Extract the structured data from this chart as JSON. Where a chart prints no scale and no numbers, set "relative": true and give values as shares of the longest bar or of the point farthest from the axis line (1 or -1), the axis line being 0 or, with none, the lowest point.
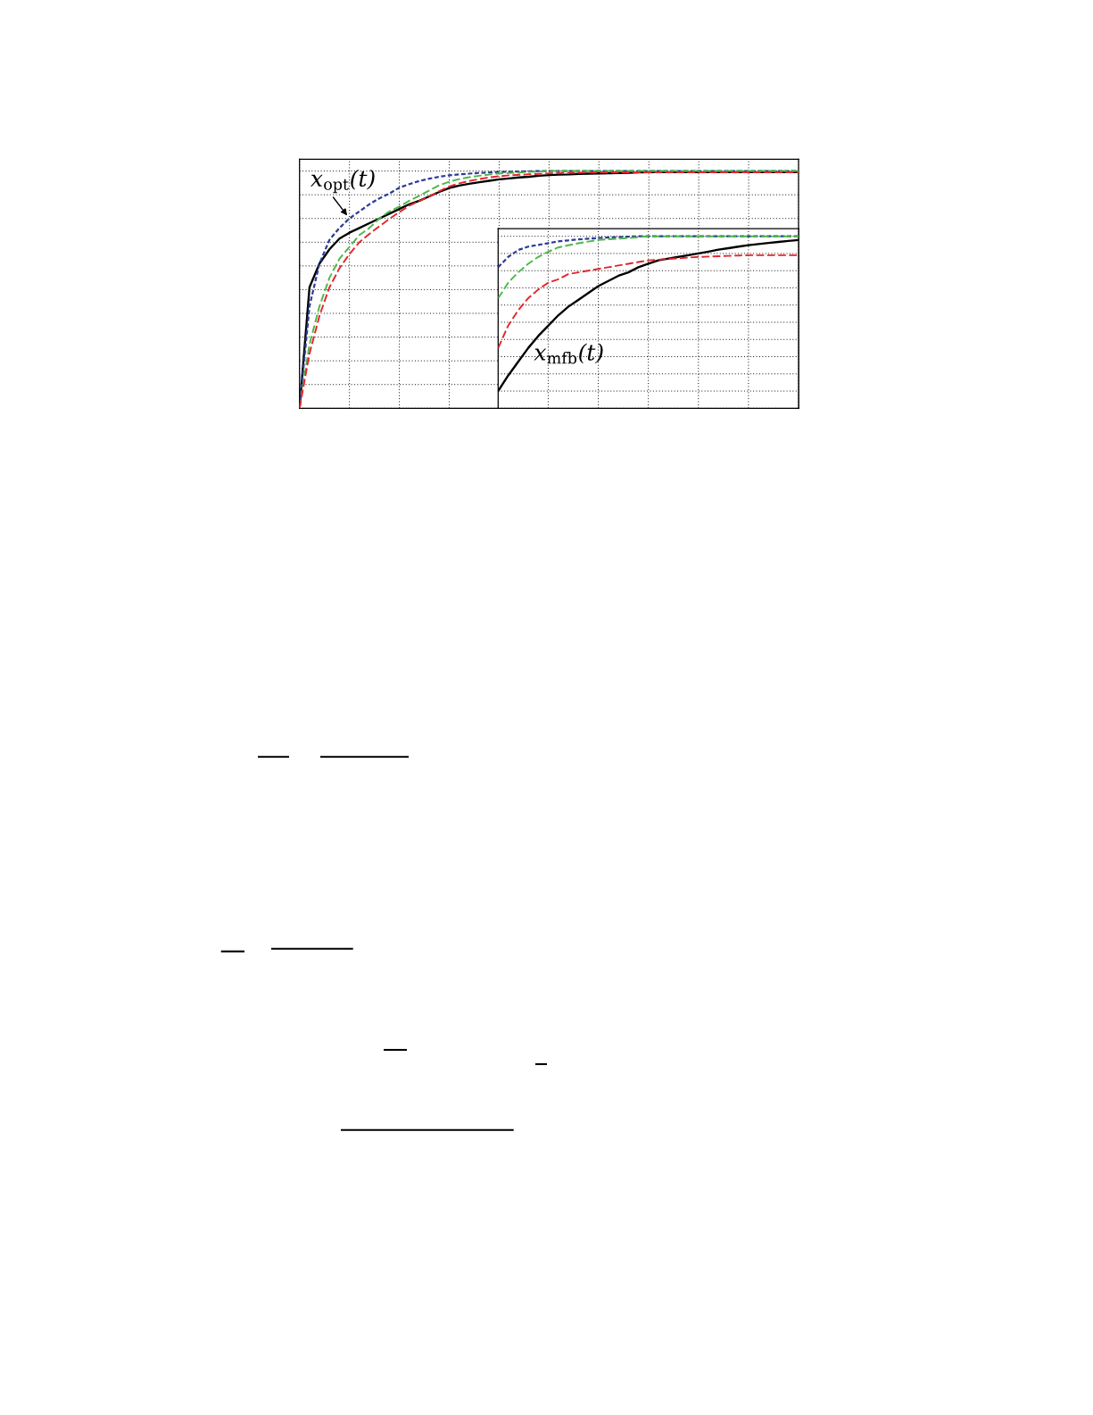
{
  "chart_data": [
    {
      "type": "line",
      "relative": true,
      "grid": true,
      "categories": [
        null,
        null,
        null,
        null,
        null,
        null,
        null,
        null,
        null,
        null,
        null,
        null,
        null,
        null,
        null,
        null,
        null,
        null,
        null,
        null,
        null,
        null,
        null,
        null,
        null,
        null,
        null,
        null,
        null,
        null,
        null,
        null,
        null,
        null,
        null,
        null,
        null,
        null,
        null,
        null,
        null,
        null,
        null,
        null,
        null,
        null,
        null,
        null,
        null,
        null,
        null
      ],
      "series": [
        {
          "color": "#000000",
          "line_style": "solid",
          "values": [
            0,
            0.51,
            0.61,
            0.67,
            0.715,
            0.74,
            0.76,
            0.78,
            0.8,
            0.82,
            0.84,
            0.86,
            0.875,
            0.893,
            0.912,
            0.928,
            0.939,
            0.946,
            0.953,
            0.959,
            0.965,
            0.969,
            0.973,
            0.976,
            0.98,
            0.983,
            0.985,
            0.986,
            0.988,
            0.989,
            0.99,
            0.991,
            0.992,
            0.993,
            0.994,
            0.995,
            0.995,
            0.995,
            0.995,
            0.995,
            0.995,
            0.995,
            0.995,
            0.995,
            0.995,
            0.995,
            0.995,
            0.995,
            0.995,
            0.995,
            0.995
          ]
        },
        {
          "name": "x$_{opt}$(t)",
          "color": "#2e3b96",
          "line_style": "dotted",
          "values": [
            0,
            0.43,
            0.61,
            0.71,
            0.76,
            0.8,
            0.83,
            0.86,
            0.885,
            0.905,
            0.93,
            0.945,
            0.958,
            0.968,
            0.976,
            0.982,
            0.986,
            0.989,
            0.992,
            0.994,
            0.996,
            0.997,
            0.998,
            0.999,
            1,
            1,
            1,
            1,
            1,
            1,
            1,
            1,
            1,
            1,
            1,
            1,
            1,
            1,
            1,
            1,
            1,
            1,
            1,
            1,
            1,
            1,
            1,
            1,
            1,
            1,
            1
          ]
        },
        {
          "color": "#4db848",
          "line_style": "dashed",
          "values": [
            0,
            0.27,
            0.43,
            0.55,
            0.63,
            0.68,
            0.73,
            0.76,
            0.8,
            0.83,
            0.85,
            0.875,
            0.895,
            0.918,
            0.94,
            0.955,
            0.966,
            0.974,
            0.98,
            0.985,
            0.99,
            0.992,
            0.994,
            0.996,
            0.998,
            1,
            1,
            1,
            1,
            1,
            1,
            1,
            1,
            1,
            1,
            1,
            1,
            1,
            1,
            1,
            1,
            1,
            1,
            1,
            1,
            1,
            1,
            1,
            1,
            1,
            1
          ]
        },
        {
          "color": "#e3262b",
          "line_style": "dashed",
          "values": [
            0,
            0.23,
            0.39,
            0.51,
            0.59,
            0.65,
            0.7,
            0.735,
            0.767,
            0.798,
            0.827,
            0.854,
            0.874,
            0.893,
            0.915,
            0.935,
            0.948,
            0.958,
            0.966,
            0.973,
            0.978,
            0.982,
            0.984,
            0.986,
            0.988,
            0.99,
            0.991,
            0.992,
            0.993,
            0.994,
            0.995,
            0.995,
            0.995,
            0.995,
            0.995,
            0.995,
            0.995,
            0.995,
            0.995,
            0.995,
            0.995,
            0.995,
            0.995,
            0.995,
            0.995,
            0.995,
            0.995,
            0.995,
            0.995,
            0.995,
            0.995
          ]
        }
      ]
    },
    {
      "type": "line",
      "relative": true,
      "grid": true,
      "categories": [
        null,
        null,
        null,
        null,
        null,
        null,
        null,
        null,
        null,
        null,
        null,
        null,
        null,
        null,
        null,
        null,
        null,
        null,
        null,
        null,
        null,
        null,
        null,
        null,
        null,
        null,
        null,
        null,
        null,
        null,
        null
      ],
      "series": [
        {
          "name": "x$_{mfb}$(t)",
          "color": "#000000",
          "line_style": "solid",
          "values": [
            0.1,
            0.19,
            0.27,
            0.35,
            0.42,
            0.48,
            0.54,
            0.59,
            0.63,
            0.67,
            0.71,
            0.74,
            0.77,
            0.79,
            0.82,
            0.84,
            0.86,
            0.87,
            0.88,
            0.89,
            0.9,
            0.911,
            0.922,
            0.931,
            0.94,
            0.948,
            0.955,
            0.961,
            0.967,
            0.973,
            0.978
          ]
        },
        {
          "color": "#2e3b96",
          "line_style": "dotted",
          "values": [
            0.82,
            0.88,
            0.92,
            0.94,
            0.95,
            0.96,
            0.97,
            0.976,
            0.982,
            0.986,
            0.99,
            0.993,
            0.995,
            0.998,
            1,
            1,
            1,
            1,
            1,
            1,
            1,
            1,
            1,
            1,
            1,
            1,
            1,
            1,
            1,
            1,
            1
          ]
        },
        {
          "color": "#4db848",
          "line_style": "dashed",
          "values": [
            0.64,
            0.73,
            0.79,
            0.84,
            0.88,
            0.91,
            0.935,
            0.948,
            0.959,
            0.969,
            0.979,
            0.983,
            0.986,
            0.99,
            0.995,
            1,
            1,
            1,
            1,
            1,
            1,
            1,
            1,
            1,
            1,
            1,
            1,
            1,
            1,
            1,
            1
          ]
        },
        {
          "color": "#e3262b",
          "line_style": "dashed",
          "values": [
            0.35,
            0.48,
            0.57,
            0.64,
            0.69,
            0.73,
            0.75,
            0.78,
            0.79,
            0.8,
            0.81,
            0.82,
            0.83,
            0.84,
            0.85,
            0.86,
            0.864,
            0.868,
            0.872,
            0.876,
            0.88,
            0.882,
            0.884,
            0.886,
            0.888,
            0.89,
            0.89,
            0.89,
            0.89,
            0.89,
            0.89
          ]
        }
      ]
    }
  ]
}
